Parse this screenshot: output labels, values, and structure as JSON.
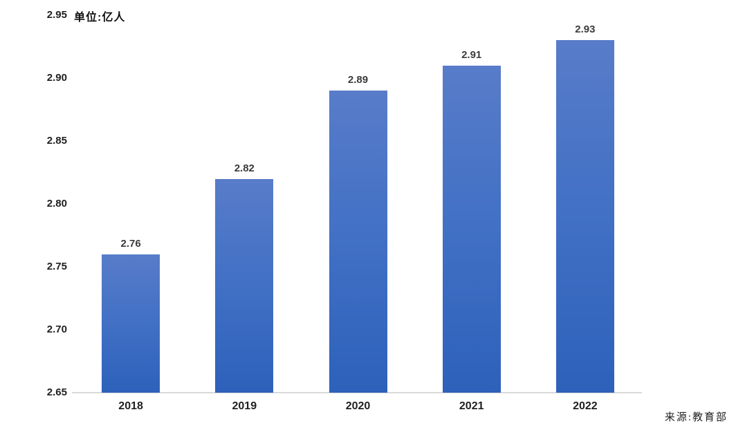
{
  "chart_data": {
    "type": "bar",
    "title": "",
    "unit_label": "单位:亿人",
    "source": "来源:教育部",
    "categories": [
      "2018",
      "2019",
      "2020",
      "2021",
      "2022"
    ],
    "values": [
      2.76,
      2.82,
      2.89,
      2.91,
      2.93
    ],
    "value_labels": [
      "2.76",
      "2.82",
      "2.89",
      "2.91",
      "2.93"
    ],
    "yticks": [
      "2.95",
      "2.90",
      "2.85",
      "2.80",
      "2.75",
      "2.70",
      "2.65"
    ],
    "ylim": [
      2.65,
      2.95
    ],
    "grid": false,
    "legend": false,
    "bar_color_top": "#587cc9",
    "bar_color_mid": "#4170c5",
    "bar_color_bottom": "#2d61ba",
    "axis_line_color": "#d9d9d9"
  }
}
